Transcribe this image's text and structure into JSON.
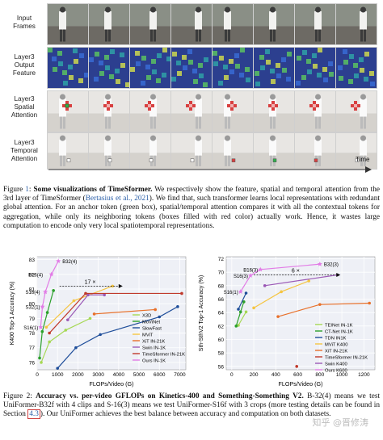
{
  "figure1": {
    "row_labels": [
      "Input\nFrames",
      "Layer3\nOutput\nFeature",
      "Layer3\nSpatial\nAttention",
      "Layer3\nTemporal\nAttention"
    ],
    "time_label": "Time",
    "caption_prefix": "Figure 1: ",
    "caption_bold": "Some visualizations of TimeSformer.",
    "caption_rest_a": " We respectively show the feature, spatial and temporal attention from the 3rd layer of TimeSformer (",
    "caption_cite": "Bertasius et al., 2021",
    "caption_rest_b": "). We find that, such transformer learns local representations with redundant global attention. For an anchor token (green box), spatial/temporal attention compares it with all the contextual tokens for aggregation, while only its neighboring tokens (boxes filled with red color) actually work. Hence, it wastes large computation to encode only very local spatiotemporal representations.",
    "caption_ref_num": "1"
  },
  "figure2": {
    "caption_prefix": "Figure 2: ",
    "caption_bold": "Accuracy vs. per-video GFLOPs on Kinetics-400 and Something-Something V2.",
    "caption_rest": " B-32(4) means we test UniFormer-B32f with 4 clips and S-16(3) means we test UniFormer-S16f with 3 crops (more testing details can be found in Section ",
    "caption_ref": "4.3",
    "caption_end": "). Our UniFormer achieves the best balance between accuracy and computation on both datasets."
  },
  "watermark": "知乎 @晋修涛",
  "chart_data": [
    {
      "type": "line",
      "title": "",
      "xlabel": "FLOPs/Video (G)",
      "ylabel": "K400 Top-1 Accuracy (%)",
      "xlim": [
        0,
        7300
      ],
      "ylim": [
        75.5,
        83.2
      ],
      "xticks": [
        0,
        1000,
        2000,
        3000,
        4000,
        5000,
        6000,
        7000
      ],
      "yticks": [
        76,
        77,
        78,
        79,
        80,
        81,
        82,
        83
      ],
      "annotation": "17 ×",
      "series": [
        {
          "name": "X3D",
          "color": "#a6d854",
          "x": [
            200,
            600,
            1400,
            2600
          ],
          "y": [
            76.0,
            77.4,
            78.2,
            79.0
          ]
        },
        {
          "name": "MoViNet",
          "color": "#2ca02c",
          "x": [
            120,
            250,
            500,
            800
          ],
          "y": [
            76.3,
            78.1,
            79.4,
            80.9
          ]
        },
        {
          "name": "SlowFast",
          "color": "#1f4e9a",
          "x": [
            1000,
            1900,
            3100,
            6000,
            6900
          ],
          "y": [
            75.6,
            77.0,
            77.9,
            79.1,
            79.8
          ]
        },
        {
          "name": "MViT",
          "color": "#f5c542",
          "x": [
            450,
            1800,
            3700
          ],
          "y": [
            78.4,
            80.2,
            81.2
          ]
        },
        {
          "name": "XiT IN-21K",
          "color": "#e8702a",
          "x": [
            2800,
            5800
          ],
          "y": [
            79.3,
            79.6
          ]
        },
        {
          "name": "Swin IN-1K",
          "color": "#9b59b6",
          "x": [
            1500,
            2500,
            3300
          ],
          "y": [
            78.9,
            80.6,
            80.6
          ]
        },
        {
          "name": "TimeSformer IN-21K",
          "color": "#c0392b",
          "x": [
            600,
            2380,
            7100
          ],
          "y": [
            78.0,
            80.7,
            80.7
          ]
        },
        {
          "name": "Ours IN-1K",
          "color": "#e27ce6",
          "x": [
            170,
            260,
            400,
            700,
            1040
          ],
          "y": [
            78.4,
            79.8,
            80.8,
            82.0,
            82.9
          ]
        }
      ],
      "point_labels": [
        {
          "text": "B32(4)",
          "x": 1040,
          "y": 82.9
        },
        {
          "text": "B16(4)",
          "x": 400,
          "y": 82.0
        },
        {
          "text": "S16(4)",
          "x": 260,
          "y": 80.8
        },
        {
          "text": "S32(1)",
          "x": 260,
          "y": 79.8
        },
        {
          "text": "S16(1)",
          "x": 170,
          "y": 78.4
        }
      ]
    },
    {
      "type": "line",
      "title": "",
      "xlabel": "FLOPs/Video (G)",
      "ylabel": "Sth-SthV2 Top-1 Accuracy (%)",
      "xlim": [
        -50,
        1300
      ],
      "ylim": [
        55.5,
        72.3
      ],
      "xticks": [
        0,
        200,
        400,
        600,
        800,
        1000,
        1200
      ],
      "yticks": [
        56,
        58,
        60,
        62,
        64,
        66,
        68,
        70,
        72
      ],
      "annotation": "6 ×",
      "series": [
        {
          "name": "TEINet IN-1K",
          "color": "#a6d854",
          "x": [
            60,
            130
          ],
          "y": [
            62.1,
            64.1
          ]
        },
        {
          "name": "CT-Net IN-1K",
          "color": "#2ca02c",
          "x": [
            40,
            80,
            110
          ],
          "y": [
            62.0,
            64.1,
            65.6
          ]
        },
        {
          "name": "TDN IN1K",
          "color": "#1f4e9a",
          "x": [
            60,
            130
          ],
          "y": [
            64.5,
            66.9
          ]
        },
        {
          "name": "MViT K400",
          "color": "#f5c542",
          "x": [
            200,
            450,
            700
          ],
          "y": [
            64.7,
            67.1,
            68.7
          ]
        },
        {
          "name": "XiT IN-21K",
          "color": "#e8702a",
          "x": [
            420,
            800,
            1250
          ],
          "y": [
            63.4,
            65.2,
            65.4
          ]
        },
        {
          "name": "TimeSformer IN-21K",
          "color": "#c0392b",
          "x": [
            590
          ],
          "y": [
            56.0
          ]
        },
        {
          "name": "Swin K400",
          "color": "#9b59b6",
          "x": [
            300,
            960
          ],
          "y": [
            68.0,
            69.6
          ]
        },
        {
          "name": "Ours K600",
          "color": "#e27ce6",
          "x": [
            80,
            170,
            260,
            800
          ],
          "y": [
            67.1,
            69.5,
            70.4,
            71.2
          ]
        }
      ],
      "point_labels": [
        {
          "text": "B32(3)",
          "x": 800,
          "y": 71.2
        },
        {
          "text": "B16(3)",
          "x": 260,
          "y": 70.4
        },
        {
          "text": "S16(3)",
          "x": 170,
          "y": 69.5
        },
        {
          "text": "S16(1)",
          "x": 80,
          "y": 67.1
        }
      ]
    }
  ]
}
